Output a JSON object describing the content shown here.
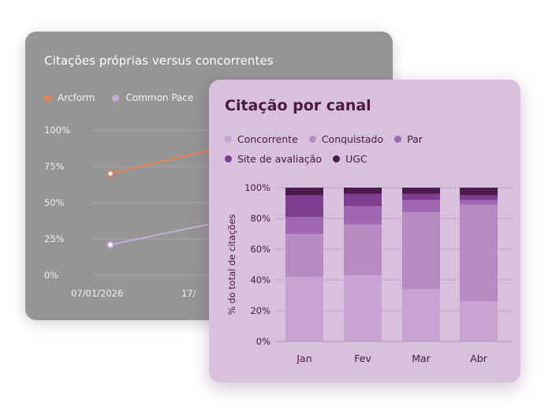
{
  "chart_data": [
    {
      "type": "line",
      "title": "Citações próprias versus concorrentes",
      "series": [
        {
          "name": "Arcform",
          "color": "#e9814f",
          "values": [
            70,
            87
          ]
        },
        {
          "name": "Common Pace",
          "color": "#c9a8d8",
          "values": [
            21,
            36
          ]
        }
      ],
      "x": [
        "07/01/2026",
        "17/"
      ],
      "yticks": [
        "0%",
        "25%",
        "50%",
        "75%",
        "100%"
      ],
      "ylim": [
        0,
        100
      ]
    },
    {
      "type": "bar",
      "stacked": true,
      "title": "Citação por canal",
      "ylabel": "% do total de citações",
      "categories": [
        "Jan",
        "Fev",
        "Mar",
        "Abr"
      ],
      "yticks": [
        "0%",
        "20%",
        "40%",
        "60%",
        "80%",
        "100%"
      ],
      "ylim": [
        0,
        100
      ],
      "legend_position": "top-left",
      "series": [
        {
          "name": "Concorrente",
          "color": "#c9a3d1",
          "values": [
            42,
            43,
            34,
            26
          ]
        },
        {
          "name": "Conquistado",
          "color": "#b88ac2",
          "values": [
            28,
            33,
            50,
            63
          ]
        },
        {
          "name": "Par",
          "color": "#a068b0",
          "values": [
            11,
            12,
            8,
            3
          ]
        },
        {
          "name": "Site de avaliação",
          "color": "#7e3d8f",
          "values": [
            14,
            8,
            4,
            3
          ]
        },
        {
          "name": "UGC",
          "color": "#4a1a4a",
          "values": [
            5,
            4,
            4,
            5
          ]
        }
      ]
    }
  ]
}
